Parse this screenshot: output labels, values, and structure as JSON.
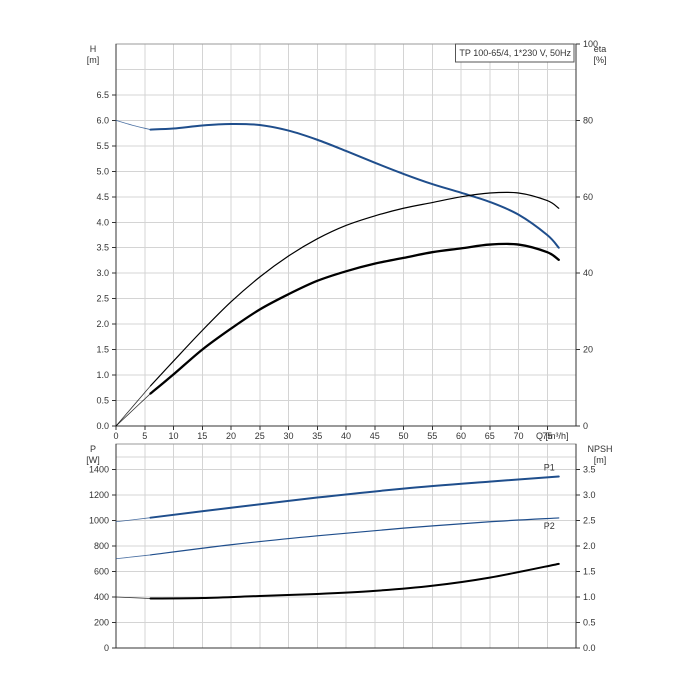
{
  "chart_data": [
    {
      "type": "line",
      "panel": "head-efficiency",
      "title": "TP 100-65/4, 1*230 V, 50Hz",
      "x_axis": {
        "label": "Q [m³/h]",
        "range": [
          0,
          80
        ],
        "ticks": [
          0,
          5,
          10,
          15,
          20,
          25,
          30,
          35,
          40,
          45,
          50,
          55,
          60,
          65,
          70,
          75
        ]
      },
      "y_left": {
        "label": "H",
        "unit": "[m]",
        "range": [
          0,
          7.5
        ],
        "ticks": [
          "0.0",
          "0.5",
          "1.0",
          "1.5",
          "2.0",
          "2.5",
          "3.0",
          "3.5",
          "4.0",
          "4.5",
          "5.0",
          "5.5",
          "6.0",
          "6.5"
        ]
      },
      "y_right": {
        "label": "eta",
        "unit": "[%]",
        "range": [
          0,
          100
        ],
        "ticks": [
          "0",
          "20",
          "40",
          "60",
          "80",
          "100"
        ]
      },
      "grid": true,
      "series": [
        {
          "key": "H",
          "axis": "left",
          "color": "#1f4e8c",
          "stroke_width": 2,
          "extrapolation": {
            "x": [
              0,
              3,
              6
            ],
            "y": [
              6.0,
              5.9,
              5.82
            ]
          },
          "x": [
            6,
            10,
            15,
            20,
            25,
            30,
            35,
            40,
            45,
            50,
            55,
            60,
            65,
            70,
            75,
            77
          ],
          "y": [
            5.82,
            5.84,
            5.9,
            5.93,
            5.91,
            5.8,
            5.62,
            5.4,
            5.17,
            4.95,
            4.75,
            4.58,
            4.4,
            4.15,
            3.75,
            3.5
          ]
        },
        {
          "key": "eta_thin",
          "axis": "right",
          "color": "#000000",
          "stroke_width": 1.2,
          "extrapolation": {
            "x": [
              0,
              6
            ],
            "y": [
              0,
              10.5
            ]
          },
          "x": [
            6,
            10,
            15,
            20,
            25,
            30,
            35,
            40,
            45,
            50,
            55,
            60,
            65,
            70,
            75,
            77
          ],
          "y": [
            10.5,
            17,
            25,
            32.5,
            39,
            44.5,
            49,
            52.5,
            55,
            57,
            58.5,
            60,
            61,
            61,
            59,
            57
          ]
        },
        {
          "key": "eta_thick",
          "axis": "right",
          "color": "#000000",
          "stroke_width": 2.3,
          "extrapolation": {
            "x": [
              0,
              6
            ],
            "y": [
              0,
              8.5
            ]
          },
          "x": [
            6,
            10,
            15,
            20,
            25,
            30,
            35,
            40,
            45,
            50,
            55,
            60,
            65,
            70,
            75,
            77
          ],
          "y": [
            8.5,
            13.5,
            20,
            25.5,
            30.5,
            34.5,
            38,
            40.5,
            42.5,
            44,
            45.5,
            46.5,
            47.5,
            47.5,
            45.5,
            43.5
          ]
        }
      ]
    },
    {
      "type": "line",
      "panel": "power-npsh",
      "title": "",
      "x_axis": {
        "label": "",
        "range": [
          0,
          80
        ]
      },
      "y_left": {
        "label": "P",
        "unit": "[W]",
        "range": [
          0,
          1600
        ],
        "ticks": [
          "0",
          "200",
          "400",
          "600",
          "800",
          "1000",
          "1200",
          "1400"
        ]
      },
      "y_right": {
        "label": "NPSH",
        "unit": "[m]",
        "range": [
          0,
          4
        ],
        "ticks": [
          "0.0",
          "0.5",
          "1.0",
          "1.5",
          "2.0",
          "2.5",
          "3.0",
          "3.5"
        ]
      },
      "grid": true,
      "series": [
        {
          "key": "P1",
          "name": "P1",
          "axis": "left",
          "color": "#1f4e8c",
          "stroke_width": 2,
          "extrapolation": {
            "x": [
              0,
              6
            ],
            "y": [
              990,
              1022
            ]
          },
          "x": [
            6,
            20,
            35,
            50,
            65,
            77
          ],
          "y": [
            1022,
            1100,
            1180,
            1250,
            1305,
            1345
          ]
        },
        {
          "key": "P2",
          "name": "P2",
          "axis": "left",
          "color": "#1f4e8c",
          "stroke_width": 1.2,
          "extrapolation": {
            "x": [
              0,
              6
            ],
            "y": [
              700,
              730
            ]
          },
          "x": [
            6,
            20,
            35,
            50,
            65,
            77
          ],
          "y": [
            730,
            810,
            880,
            940,
            990,
            1020
          ]
        },
        {
          "key": "NPSH",
          "axis": "right",
          "color": "#000000",
          "stroke_width": 2,
          "extrapolation": {
            "x": [
              0,
              6
            ],
            "y": [
              1.0,
              0.97
            ]
          },
          "x": [
            6,
            15,
            25,
            35,
            45,
            55,
            65,
            77
          ],
          "y": [
            0.97,
            0.98,
            1.02,
            1.06,
            1.12,
            1.22,
            1.38,
            1.65
          ]
        }
      ]
    }
  ]
}
